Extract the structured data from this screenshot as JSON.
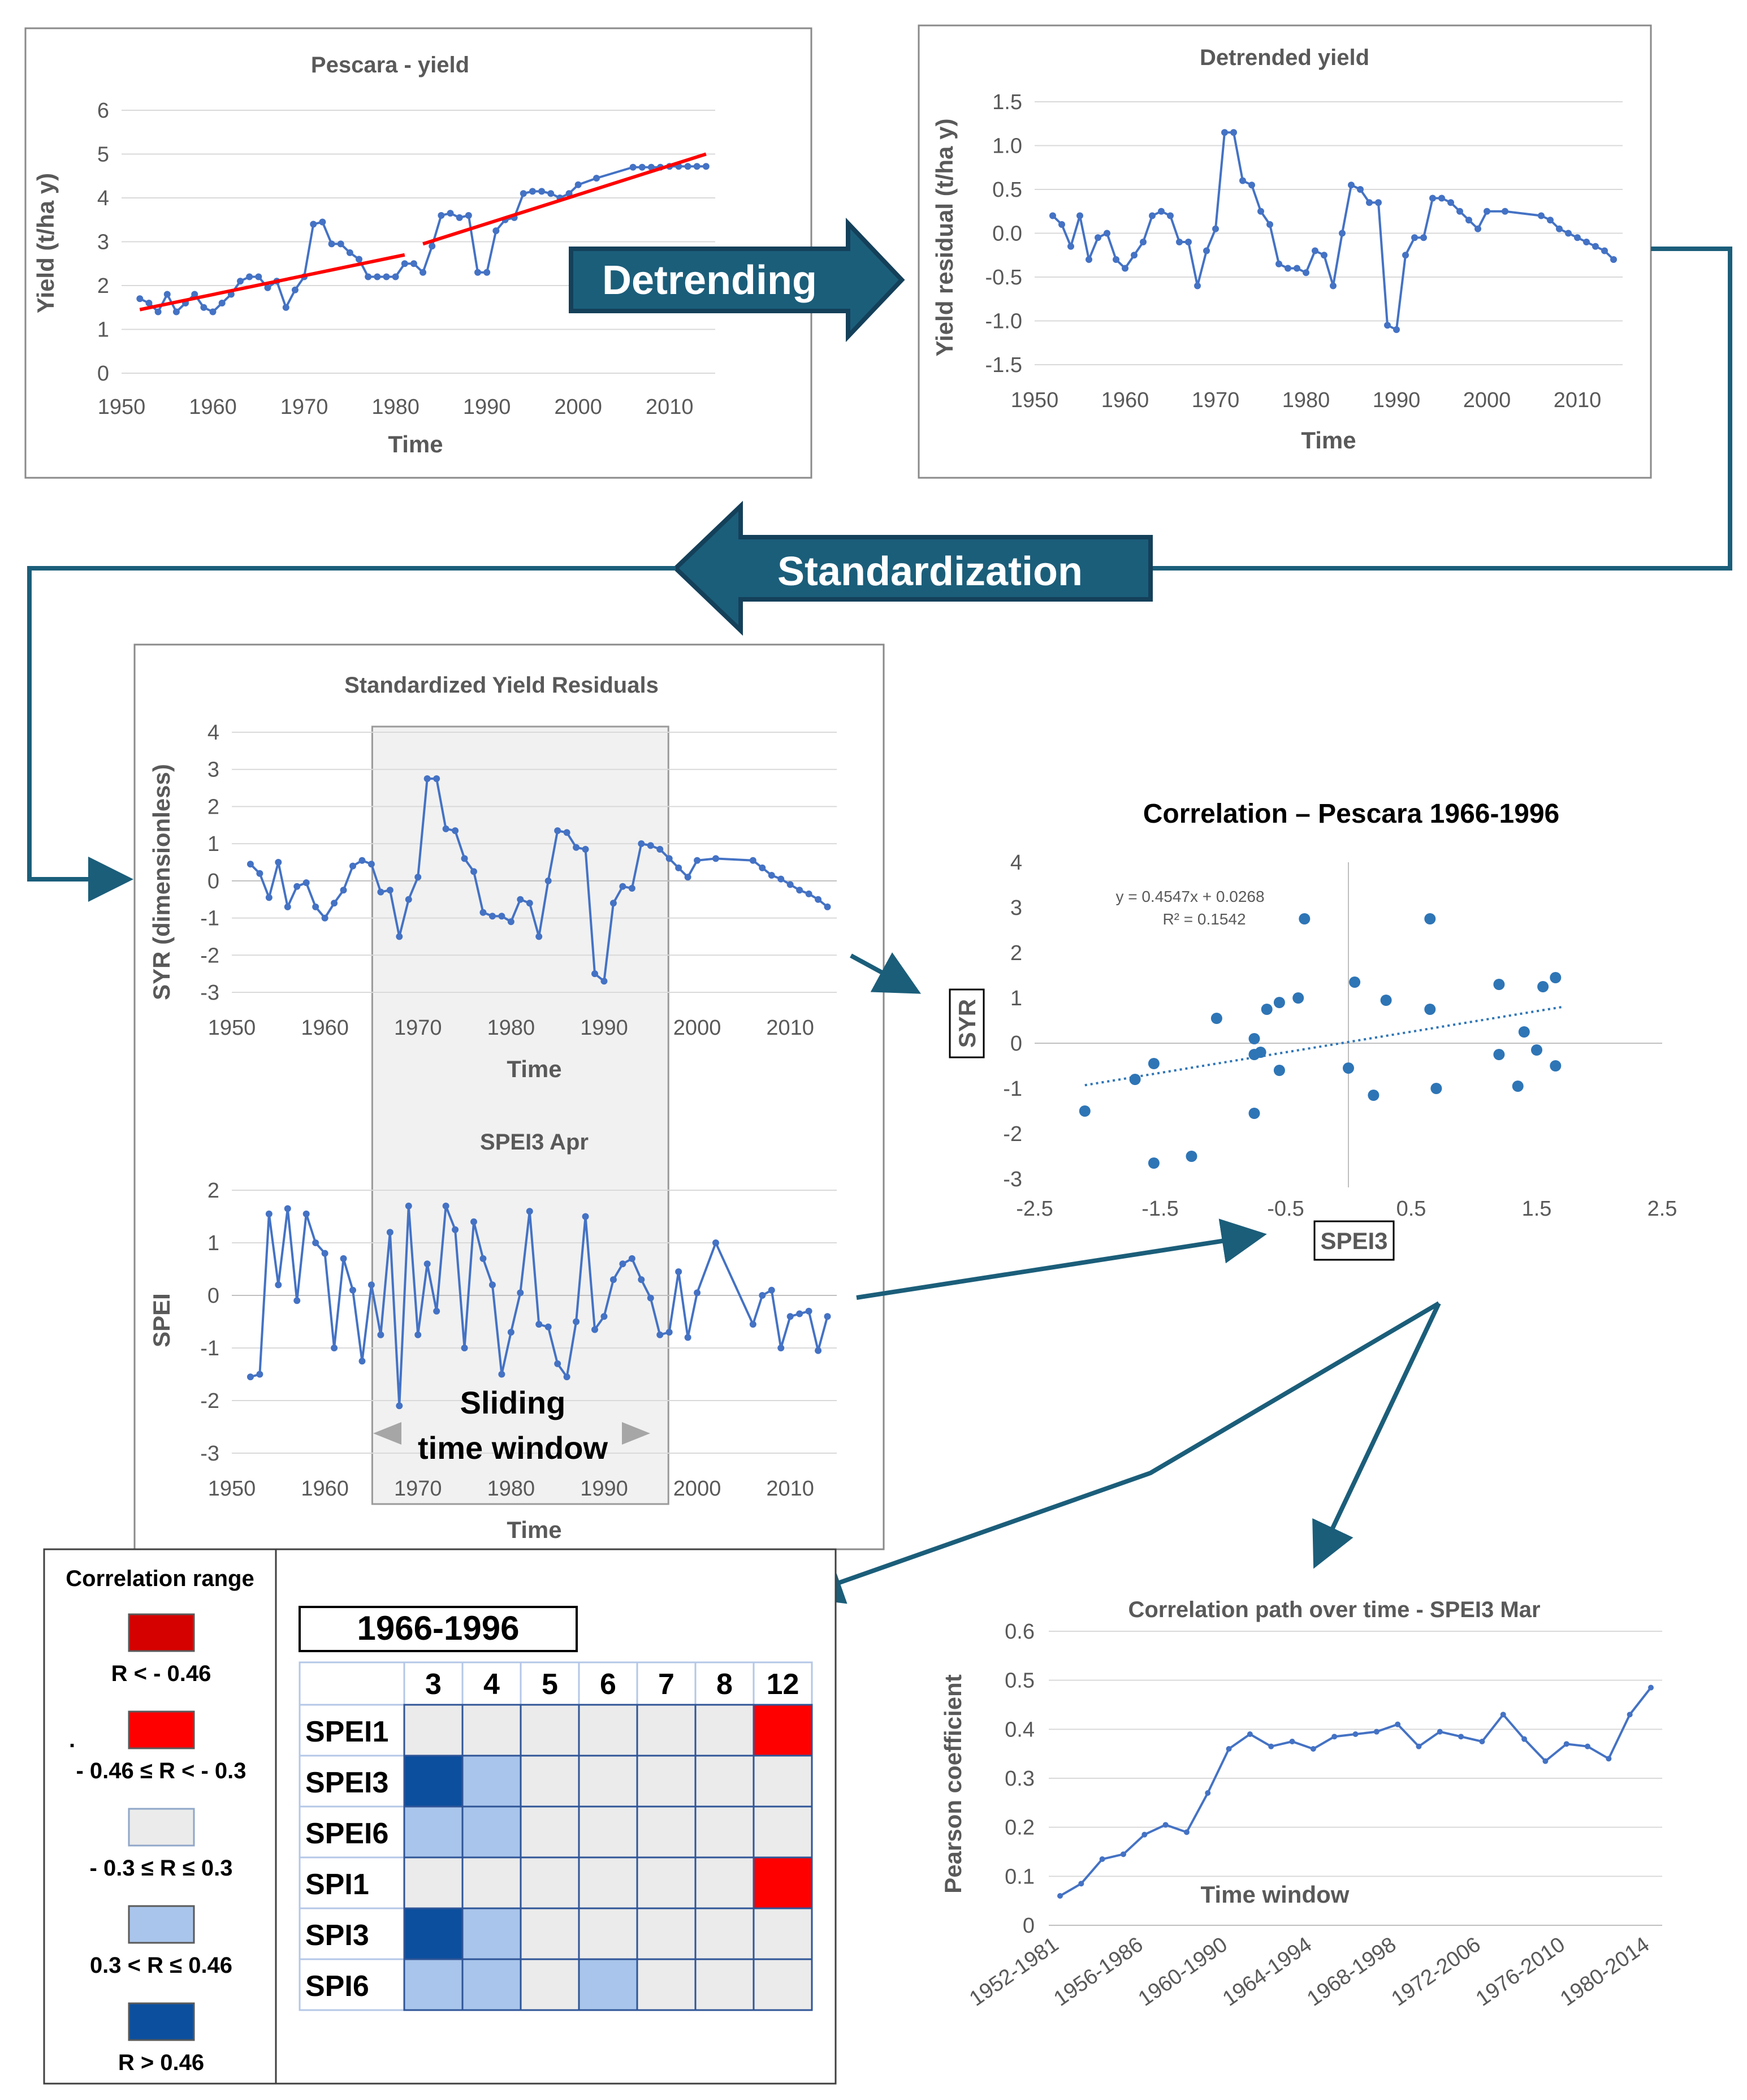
{
  "flow": {
    "detrending_label": "Detrending",
    "standardization_label": "Standardization",
    "sliding_window_line1": "Sliding",
    "sliding_window_line2": "time window",
    "arrow_color": "#1b5e7a",
    "arrow_dark": "#14405a"
  },
  "chart_data": [
    {
      "id": "yield",
      "type": "line",
      "title": "Pescara - yield",
      "xlabel": "Time",
      "ylabel": "Yield (t/ha y)",
      "xlim": [
        1950,
        2015
      ],
      "ylim": [
        0,
        6
      ],
      "xticks": [
        1950,
        1960,
        1970,
        1980,
        1990,
        2000,
        2010
      ],
      "yticks": [
        0,
        1,
        2,
        3,
        4,
        5,
        6
      ],
      "series": [
        {
          "name": "Yield",
          "color": "#4472c4",
          "x": [
            1952,
            1953,
            1954,
            1955,
            1956,
            1957,
            1958,
            1959,
            1960,
            1961,
            1962,
            1963,
            1964,
            1965,
            1966,
            1967,
            1968,
            1969,
            1970,
            1971,
            1972,
            1973,
            1974,
            1975,
            1976,
            1977,
            1978,
            1979,
            1980,
            1981,
            1982,
            1983,
            1984,
            1985,
            1986,
            1987,
            1988,
            1989,
            1990,
            1991,
            1992,
            1993,
            1994,
            1995,
            1996,
            1997,
            1998,
            1999,
            2000,
            2002,
            2006,
            2007,
            2008,
            2009,
            2010,
            2011,
            2012,
            2013,
            2014
          ],
          "y": [
            1.7,
            1.6,
            1.4,
            1.8,
            1.4,
            1.6,
            1.8,
            1.5,
            1.4,
            1.6,
            1.8,
            2.1,
            2.2,
            2.2,
            1.95,
            2.1,
            1.5,
            1.9,
            2.2,
            3.4,
            3.45,
            2.95,
            2.95,
            2.75,
            2.6,
            2.2,
            2.2,
            2.2,
            2.2,
            2.5,
            2.5,
            2.3,
            2.9,
            3.6,
            3.65,
            3.55,
            3.6,
            2.3,
            2.3,
            3.25,
            3.5,
            3.55,
            4.1,
            4.15,
            4.15,
            4.1,
            4.0,
            4.1,
            4.3,
            4.45,
            4.7,
            4.7,
            4.7,
            4.7,
            4.72,
            4.72,
            4.72,
            4.72,
            4.72
          ]
        }
      ],
      "trends": [
        {
          "name": "Trend 1952-1981",
          "color": "#ff0000",
          "x": [
            1952,
            1981
          ],
          "y": [
            1.45,
            2.7
          ]
        },
        {
          "name": "Trend 1983-2014",
          "color": "#ff0000",
          "x": [
            1983,
            2014
          ],
          "y": [
            2.95,
            5.0
          ]
        }
      ]
    },
    {
      "id": "detrended",
      "type": "line",
      "title": "Detrended yield",
      "xlabel": "Time",
      "ylabel": "Yield residual (t/ha y)",
      "xlim": [
        1950,
        2015
      ],
      "ylim": [
        -1.5,
        1.5
      ],
      "xticks": [
        1950,
        1960,
        1970,
        1980,
        1990,
        2000,
        2010
      ],
      "yticks": [
        -1.5,
        -1.0,
        -0.5,
        0.0,
        0.5,
        1.0,
        1.5
      ],
      "ytick_labels": [
        "-1.5",
        "-1.0",
        "-0.5",
        "0.0",
        "0.5",
        "1.0",
        "1.5"
      ],
      "series": [
        {
          "name": "Yield residual",
          "color": "#4472c4",
          "x": [
            1952,
            1953,
            1954,
            1955,
            1956,
            1957,
            1958,
            1959,
            1960,
            1961,
            1962,
            1963,
            1964,
            1965,
            1966,
            1967,
            1968,
            1969,
            1970,
            1971,
            1972,
            1973,
            1974,
            1975,
            1976,
            1977,
            1978,
            1979,
            1980,
            1981,
            1982,
            1983,
            1984,
            1985,
            1986,
            1987,
            1988,
            1989,
            1990,
            1991,
            1992,
            1993,
            1994,
            1995,
            1996,
            1997,
            1998,
            1999,
            2000,
            2002,
            2006,
            2007,
            2008,
            2009,
            2010,
            2011,
            2012,
            2013,
            2014
          ],
          "y": [
            0.2,
            0.1,
            -0.15,
            0.2,
            -0.3,
            -0.05,
            0.0,
            -0.3,
            -0.4,
            -0.25,
            -0.1,
            0.2,
            0.25,
            0.2,
            -0.1,
            -0.1,
            -0.6,
            -0.2,
            0.05,
            1.15,
            1.15,
            0.6,
            0.55,
            0.25,
            0.1,
            -0.35,
            -0.4,
            -0.4,
            -0.45,
            -0.2,
            -0.25,
            -0.6,
            0.0,
            0.55,
            0.5,
            0.35,
            0.35,
            -1.05,
            -1.1,
            -0.25,
            -0.05,
            -0.05,
            0.4,
            0.4,
            0.35,
            0.25,
            0.15,
            0.05,
            0.25,
            0.25,
            0.2,
            0.15,
            0.05,
            0.0,
            -0.05,
            -0.1,
            -0.15,
            -0.2,
            -0.3
          ]
        }
      ]
    },
    {
      "id": "syr",
      "type": "line",
      "title": "Standardized Yield Residuals",
      "xlabel": "Time",
      "ylabel": "SYR (dimensionless)",
      "xlim": [
        1950,
        2015
      ],
      "ylim": [
        -3,
        4
      ],
      "xticks": [
        1950,
        1960,
        1970,
        1980,
        1990,
        2000,
        2010
      ],
      "yticks": [
        -3,
        -2,
        -1,
        0,
        1,
        2,
        3,
        4
      ],
      "window": [
        1966,
        1996
      ],
      "series": [
        {
          "name": "SYR",
          "color": "#4472c4",
          "x": [
            1952,
            1953,
            1954,
            1955,
            1956,
            1957,
            1958,
            1959,
            1960,
            1961,
            1962,
            1963,
            1964,
            1965,
            1966,
            1967,
            1968,
            1969,
            1970,
            1971,
            1972,
            1973,
            1974,
            1975,
            1976,
            1977,
            1978,
            1979,
            1980,
            1981,
            1982,
            1983,
            1984,
            1985,
            1986,
            1987,
            1988,
            1989,
            1990,
            1991,
            1992,
            1993,
            1994,
            1995,
            1996,
            1997,
            1998,
            1999,
            2000,
            2002,
            2006,
            2007,
            2008,
            2009,
            2010,
            2011,
            2012,
            2013,
            2014
          ],
          "y": [
            0.45,
            0.2,
            -0.45,
            0.5,
            -0.7,
            -0.15,
            -0.05,
            -0.7,
            -1.0,
            -0.6,
            -0.25,
            0.4,
            0.55,
            0.45,
            -0.3,
            -0.25,
            -1.5,
            -0.5,
            0.1,
            2.75,
            2.75,
            1.4,
            1.35,
            0.6,
            0.25,
            -0.85,
            -0.95,
            -0.95,
            -1.1,
            -0.5,
            -0.6,
            -1.5,
            0.0,
            1.35,
            1.3,
            0.9,
            0.85,
            -2.5,
            -2.7,
            -0.6,
            -0.15,
            -0.2,
            1.0,
            0.95,
            0.85,
            0.6,
            0.35,
            0.1,
            0.55,
            0.6,
            0.55,
            0.35,
            0.15,
            0.05,
            -0.1,
            -0.25,
            -0.35,
            -0.5,
            -0.7
          ]
        }
      ]
    },
    {
      "id": "spei",
      "type": "line",
      "title": "SPEI3 Apr",
      "xlabel": "Time",
      "ylabel": "SPEI",
      "xlim": [
        1950,
        2015
      ],
      "ylim": [
        -3,
        2
      ],
      "xticks": [
        1950,
        1960,
        1970,
        1980,
        1990,
        2000,
        2010
      ],
      "yticks": [
        -3,
        -2,
        -1,
        0,
        1,
        2
      ],
      "window": [
        1966,
        1996
      ],
      "series": [
        {
          "name": "SPEI3 Apr",
          "color": "#4472c4",
          "x": [
            1952,
            1953,
            1954,
            1955,
            1956,
            1957,
            1958,
            1959,
            1960,
            1961,
            1962,
            1963,
            1964,
            1965,
            1966,
            1967,
            1968,
            1969,
            1970,
            1971,
            1972,
            1973,
            1974,
            1975,
            1976,
            1977,
            1978,
            1979,
            1980,
            1981,
            1982,
            1983,
            1984,
            1985,
            1986,
            1987,
            1988,
            1989,
            1990,
            1991,
            1992,
            1993,
            1994,
            1995,
            1996,
            1997,
            1998,
            1999,
            2000,
            2002,
            2006,
            2007,
            2008,
            2009,
            2010,
            2011,
            2012,
            2013,
            2014
          ],
          "y": [
            -1.55,
            -1.5,
            1.55,
            0.2,
            1.65,
            -0.1,
            1.55,
            1.0,
            0.8,
            -1.0,
            0.7,
            0.1,
            -1.25,
            0.2,
            -0.75,
            1.2,
            -2.1,
            1.7,
            -0.75,
            0.6,
            -0.3,
            1.7,
            1.25,
            -1.0,
            1.4,
            0.7,
            0.2,
            -1.5,
            -0.7,
            0.05,
            1.6,
            -0.55,
            -0.6,
            -1.3,
            -1.55,
            -0.5,
            1.5,
            -0.65,
            -0.4,
            0.3,
            0.6,
            0.7,
            0.3,
            -0.05,
            -0.75,
            -0.7,
            0.45,
            -0.8,
            0.05,
            1.0,
            -0.55,
            0.0,
            0.1,
            -1.0,
            -0.4,
            -0.35,
            -0.3,
            -1.05,
            -0.4
          ]
        }
      ]
    },
    {
      "id": "scatter",
      "type": "scatter",
      "title": "Correlation – Pescara 1966-1996",
      "xlabel": "SPEI3",
      "ylabel": "SYR",
      "xlim": [
        -2.5,
        2.5
      ],
      "ylim": [
        -3,
        4
      ],
      "xticks": [
        -2.5,
        -1.5,
        -0.5,
        0.5,
        1.5,
        2.5
      ],
      "yticks": [
        -3,
        -2,
        -1,
        0,
        1,
        2,
        3,
        4
      ],
      "equation": "y = 0.4547x + 0.0268",
      "r_squared": "R² = 0.1542",
      "trend": {
        "slope": 0.4547,
        "intercept": 0.0268,
        "x": [
          -2.1,
          1.7
        ]
      },
      "points": [
        [
          -2.1,
          -1.5
        ],
        [
          -1.7,
          -0.8
        ],
        [
          -1.55,
          -0.45
        ],
        [
          -1.55,
          -2.65
        ],
        [
          -1.25,
          -2.5
        ],
        [
          -1.05,
          0.55
        ],
        [
          -0.75,
          0.1
        ],
        [
          -0.75,
          -0.25
        ],
        [
          -0.75,
          -1.55
        ],
        [
          -0.7,
          -0.2
        ],
        [
          -0.65,
          0.75
        ],
        [
          -0.55,
          0.9
        ],
        [
          -0.55,
          -0.6
        ],
        [
          -0.4,
          1.0
        ],
        [
          -0.35,
          2.75
        ],
        [
          0.0,
          -0.55
        ],
        [
          0.05,
          1.35
        ],
        [
          0.2,
          -1.15
        ],
        [
          0.3,
          0.95
        ],
        [
          0.65,
          2.75
        ],
        [
          0.65,
          0.75
        ],
        [
          0.7,
          -1.0
        ],
        [
          1.2,
          1.3
        ],
        [
          1.2,
          -0.25
        ],
        [
          1.35,
          -0.95
        ],
        [
          1.4,
          0.25
        ],
        [
          1.5,
          -0.15
        ],
        [
          1.55,
          1.25
        ],
        [
          1.65,
          1.45
        ],
        [
          1.65,
          -0.5
        ]
      ],
      "color": "#2e75b6"
    },
    {
      "id": "path",
      "type": "line",
      "title": "Correlation path over time - SPEI3 Mar",
      "xlabel": "Time window",
      "ylabel": "Pearson coefficient",
      "ylim": [
        0,
        0.6
      ],
      "yticks": [
        0,
        0.1,
        0.2,
        0.3,
        0.4,
        0.5,
        0.6
      ],
      "categories": [
        "1952-1981",
        "1953-1982",
        "1954-1983",
        "1955-1984",
        "1956-1986",
        "1957-1987",
        "1958-1988",
        "1959-1989",
        "1960-1990",
        "1961-1991",
        "1962-1992",
        "1963-1993",
        "1964-1994",
        "1965-1995",
        "1966-1996",
        "1967-1997",
        "1968-1998",
        "1969-1999",
        "1970-2000",
        "1971-2002",
        "1972-2006",
        "1973-2007",
        "1974-2008",
        "1975-2009",
        "1976-2010",
        "1977-2011",
        "1978-2012",
        "1979-2013",
        "1980-2014"
      ],
      "category_labels_shown": [
        "1952-1981",
        "1956-1986",
        "1960-1990",
        "1964-1994",
        "1968-1998",
        "1972-2006",
        "1976-2010",
        "1980-2014"
      ],
      "values": [
        0.06,
        0.085,
        0.135,
        0.145,
        0.185,
        0.205,
        0.19,
        0.27,
        0.36,
        0.39,
        0.365,
        0.375,
        0.36,
        0.385,
        0.39,
        0.395,
        0.41,
        0.365,
        0.395,
        0.385,
        0.375,
        0.43,
        0.38,
        0.335,
        0.37,
        0.365,
        0.34,
        0.43,
        0.485
      ],
      "color": "#4472c4"
    }
  ],
  "legend": {
    "title": "Correlation range",
    "items": [
      {
        "label": "R < - 0.46",
        "color": "#d50000"
      },
      {
        "label": "- 0.46 ≤ R < - 0.3",
        "color": "#ff0000"
      },
      {
        "label": "- 0.3 ≤ R ≤ 0.3",
        "color": "#ebebeb"
      },
      {
        "label": "0.3 < R ≤ 0.46",
        "color": "#a9c5eb"
      },
      {
        "label": "R > 0.46",
        "color": "#0b4f9e"
      }
    ],
    "stray_mark": "."
  },
  "matrix": {
    "title": "1966-1996",
    "columns": [
      "3",
      "4",
      "5",
      "6",
      "7",
      "8",
      "12"
    ],
    "rows": [
      {
        "label": "SPEI1",
        "cells": [
          "n",
          "n",
          "n",
          "n",
          "n",
          "n",
          "R"
        ]
      },
      {
        "label": "SPEI3",
        "cells": [
          "D",
          "L",
          "n",
          "n",
          "n",
          "n",
          "n"
        ]
      },
      {
        "label": "SPEI6",
        "cells": [
          "L",
          "L",
          "n",
          "n",
          "n",
          "n",
          "n"
        ]
      },
      {
        "label": "SPI1",
        "cells": [
          "n",
          "n",
          "n",
          "n",
          "n",
          "n",
          "R"
        ]
      },
      {
        "label": "SPI3",
        "cells": [
          "D",
          "L",
          "n",
          "n",
          "n",
          "n",
          "n"
        ]
      },
      {
        "label": "SPI6",
        "cells": [
          "L",
          "L",
          "n",
          "L",
          "n",
          "n",
          "n"
        ]
      }
    ],
    "cell_colors": {
      "n": "#ebebeb",
      "L": "#a9c5eb",
      "D": "#0b4f9e",
      "R": "#ff0000"
    }
  }
}
